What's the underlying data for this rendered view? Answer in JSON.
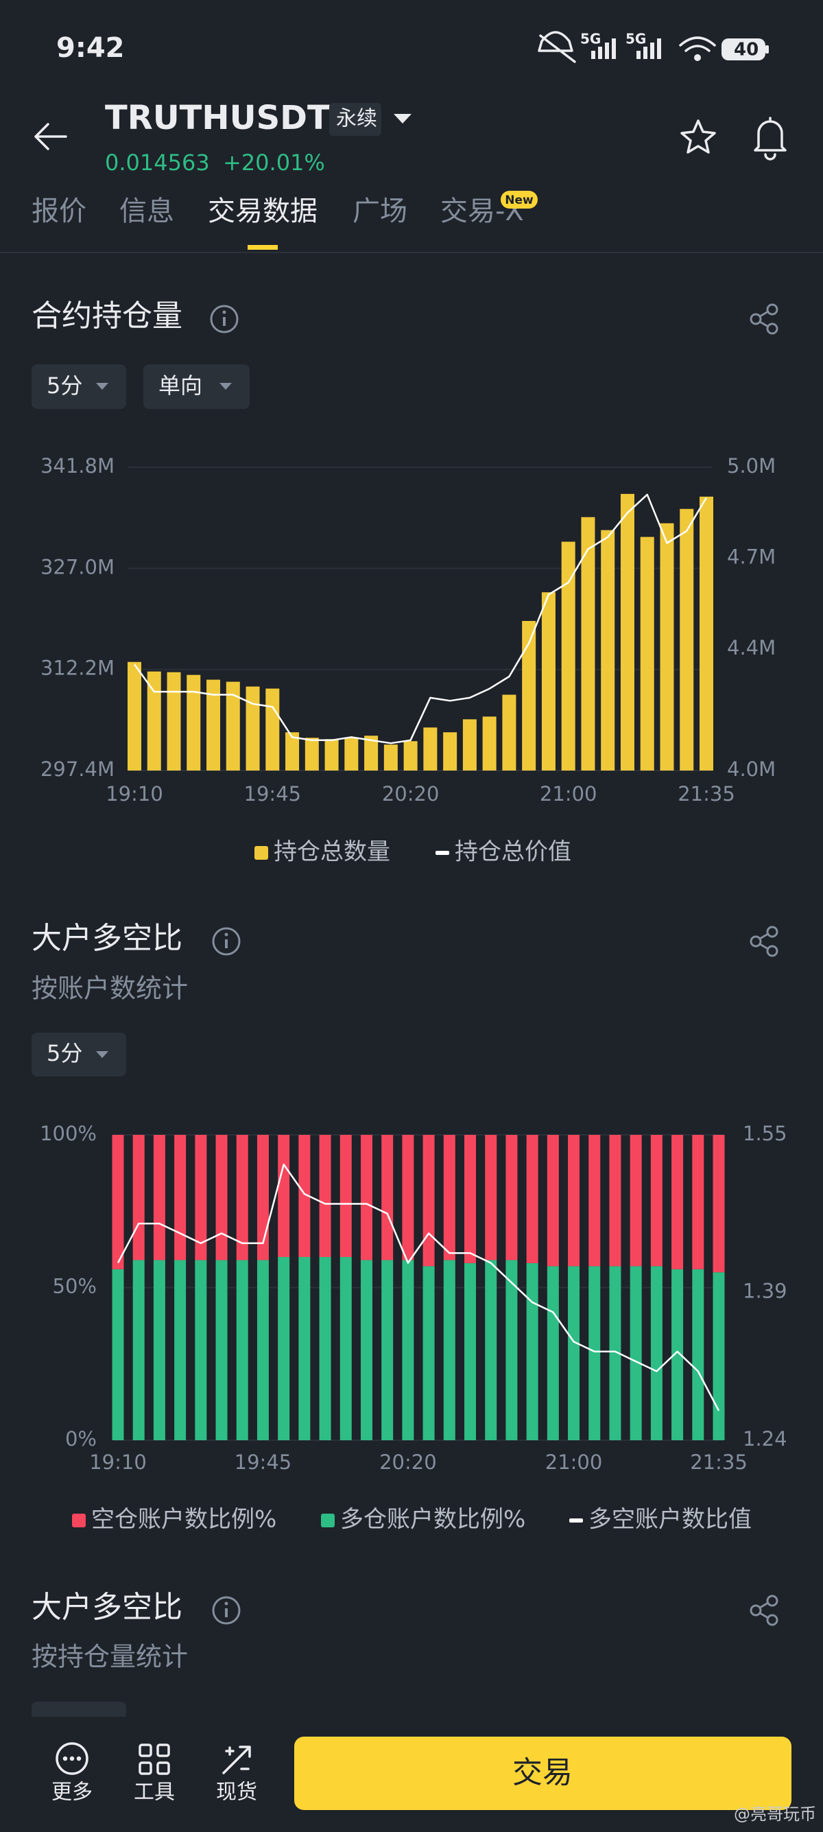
{
  "status_bar": {
    "time": "9:42",
    "network": [
      "5G",
      "5G"
    ],
    "battery": "40"
  },
  "header": {
    "symbol": "TRUTHUSDT",
    "contract_type": "永续",
    "price": "0.014563",
    "change": "+20.01%"
  },
  "tabs": {
    "items": [
      "报价",
      "信息",
      "交易数据",
      "广场",
      "交易-X"
    ],
    "active": 2,
    "badge": "New"
  },
  "sections": [
    {
      "title": "合约持仓量",
      "filters": [
        "5分",
        "单向"
      ]
    },
    {
      "title": "大户多空比",
      "subtitle": "按账户数统计",
      "filters": [
        "5分"
      ]
    },
    {
      "title": "大户多空比",
      "subtitle": "按持仓量统计"
    }
  ],
  "chart_data": [
    {
      "type": "bar",
      "categories": [
        "19:10",
        null,
        null,
        null,
        null,
        null,
        null,
        "19:45",
        null,
        null,
        null,
        null,
        null,
        null,
        "20:20",
        null,
        null,
        null,
        null,
        null,
        null,
        null,
        "21:00",
        null,
        null,
        null,
        null,
        null,
        null,
        "21:35"
      ],
      "series": [
        {
          "name": "持仓总数量",
          "color": "#f0c93a",
          "values": [
            313.3,
            311.9,
            311.8,
            311.4,
            310.7,
            310.4,
            309.7,
            309.4,
            303.0,
            302.2,
            302.0,
            302.2,
            302.5,
            301.2,
            301.7,
            303.7,
            303.0,
            304.9,
            305.3,
            308.5,
            319.3,
            323.5,
            330.9,
            334.5,
            332.6,
            337.9,
            331.6,
            333.6,
            335.7,
            337.5
          ]
        },
        {
          "name": "持仓总价值",
          "color": "#ffffff",
          "type": "line",
          "axis": "y2",
          "values": [
            4.35,
            4.26,
            4.26,
            4.26,
            4.25,
            4.25,
            4.22,
            4.21,
            4.11,
            4.1,
            4.1,
            4.11,
            4.1,
            4.09,
            4.1,
            4.24,
            4.23,
            4.24,
            4.27,
            4.31,
            4.42,
            4.58,
            4.62,
            4.73,
            4.77,
            4.85,
            4.91,
            4.75,
            4.79,
            4.9
          ]
        }
      ],
      "ylim": [
        297.4,
        341.8
      ],
      "yticks": [
        {
          "value": 297.4,
          "label": "297.4M"
        },
        {
          "value": 312.2,
          "label": "312.2M"
        },
        {
          "value": 327.0,
          "label": "327.0M"
        },
        {
          "value": 341.8,
          "label": "341.8M"
        }
      ],
      "y2lim": [
        4.0,
        5.0
      ],
      "y2ticks": [
        {
          "value": 4.0,
          "label": "4.0M"
        },
        {
          "value": 4.4,
          "label": "4.4M"
        },
        {
          "value": 4.7,
          "label": "4.7M"
        },
        {
          "value": 5.0,
          "label": "5.0M"
        }
      ],
      "grid": true,
      "stacked": false
    },
    {
      "type": "bar",
      "categories": [
        "19:10",
        null,
        null,
        null,
        null,
        null,
        null,
        "19:45",
        null,
        null,
        null,
        null,
        null,
        null,
        "20:20",
        null,
        null,
        null,
        null,
        null,
        null,
        null,
        "21:00",
        null,
        null,
        null,
        null,
        null,
        null,
        "21:35"
      ],
      "series": [
        {
          "name": "空仓账户数比例%",
          "color": "#f6465d",
          "values": [
            44,
            41,
            41,
            41,
            41,
            41,
            41,
            41,
            40,
            40,
            40,
            40,
            41,
            41,
            41,
            43,
            41,
            42,
            41,
            41,
            42,
            43,
            43,
            43,
            43,
            43,
            43,
            44,
            44,
            45
          ]
        },
        {
          "name": "多仓账户数比例%",
          "color": "#2ebd85",
          "values": [
            56,
            59,
            59,
            59,
            59,
            59,
            59,
            59,
            60,
            60,
            60,
            60,
            59,
            59,
            59,
            57,
            59,
            58,
            59,
            59,
            58,
            57,
            57,
            57,
            57,
            57,
            57,
            56,
            56,
            55
          ]
        },
        {
          "name": "多空账户数比值",
          "color": "#ffffff",
          "type": "line",
          "axis": "y2",
          "values": [
            1.42,
            1.46,
            1.46,
            1.45,
            1.44,
            1.45,
            1.44,
            1.44,
            1.52,
            1.49,
            1.48,
            1.48,
            1.48,
            1.47,
            1.42,
            1.45,
            1.43,
            1.43,
            1.42,
            1.4,
            1.38,
            1.37,
            1.34,
            1.33,
            1.33,
            1.32,
            1.31,
            1.33,
            1.31,
            1.27
          ]
        }
      ],
      "ylim": [
        0,
        100
      ],
      "yticks": [
        {
          "value": 0,
          "label": "0%"
        },
        {
          "value": 50,
          "label": "50%"
        },
        {
          "value": 100,
          "label": "100%"
        }
      ],
      "y2lim": [
        1.24,
        1.55
      ],
      "y2ticks": [
        1.24,
        1.39,
        1.55
      ],
      "grid": true,
      "stacked": true
    }
  ],
  "bottom_bar": {
    "nav": [
      "更多",
      "工具",
      "现货"
    ],
    "button": "交易"
  },
  "watermark": "@亮哥玩币"
}
